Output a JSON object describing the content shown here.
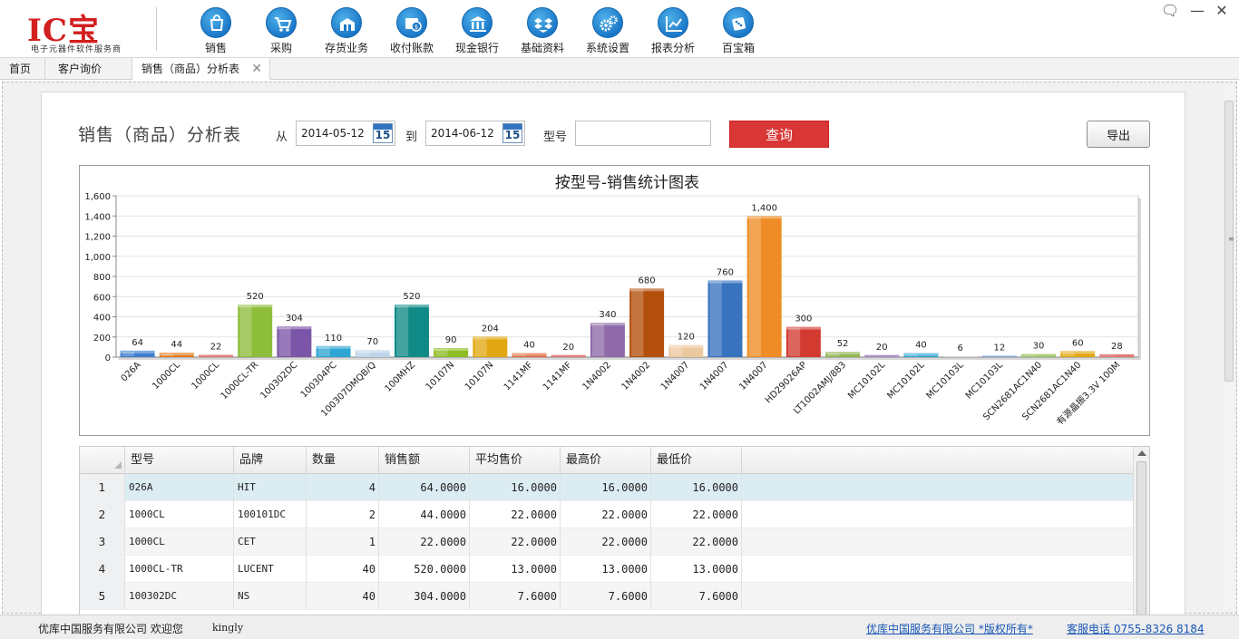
{
  "logo": {
    "text": "IC宝",
    "subtitle": "电子元器件软件服务商"
  },
  "nav": [
    {
      "label": "销售",
      "icon": "shopping-bag-icon"
    },
    {
      "label": "采购",
      "icon": "cart-icon"
    },
    {
      "label": "存货业务",
      "icon": "warehouse-icon"
    },
    {
      "label": "收付账款",
      "icon": "money-icon"
    },
    {
      "label": "现金银行",
      "icon": "bank-icon"
    },
    {
      "label": "基础资料",
      "icon": "dropbox-icon"
    },
    {
      "label": "系统设置",
      "icon": "gears-icon"
    },
    {
      "label": "报表分析",
      "icon": "line-chart-icon"
    },
    {
      "label": "百宝箱",
      "icon": "dice-icon"
    }
  ],
  "window": {
    "chat_glyph": "🗨",
    "minimize_glyph": "—",
    "close_glyph": "✕"
  },
  "tabs": [
    {
      "label": "首页"
    },
    {
      "label": "客户询价"
    },
    {
      "label": "销售（商品）分析表",
      "close": "✕"
    }
  ],
  "query": {
    "title": "销售（商品）分析表",
    "from_label": "从",
    "from_date": "2014-05-12",
    "to_label": "到",
    "to_date": "2014-06-12",
    "calendar_num": "15",
    "model_label": "型号",
    "model_value": "",
    "query_button": "查询",
    "export_button": "导出"
  },
  "colors": {
    "accent_red": "#d93636",
    "bars": [
      "#3d7fce",
      "#e07b1d",
      "#d43a34",
      "#8dbd3b",
      "#7b55a8",
      "#2ea6d3",
      "#bcd4ea",
      "#0f8a86",
      "#8dbd22",
      "#e2a713",
      "#e0683a",
      "#d23a34",
      "#8e6aa8",
      "#b34f0c",
      "#ecc89e",
      "#3873c0",
      "#ef8c25",
      "#d33a30",
      "#8fb44f",
      "#7b55a8",
      "#2ea6d3",
      "#c9c9c9",
      "#3873c0",
      "#7fb43a",
      "#e2a713",
      "#d23a34"
    ]
  },
  "chart_data": {
    "type": "bar",
    "title": "按型号-销售统计图表",
    "categories": [
      "026A",
      "1000CL",
      "1000CL",
      "1000CL-TR",
      "100302DC",
      "100304PC",
      "100307DMQB/Q",
      "100MHZ",
      "10107N",
      "10107N",
      "1141MF",
      "1141MF",
      "1N4002",
      "1N4002",
      "1N4007",
      "1N4007",
      "1N4007",
      "HD29026AP",
      "LT1002AMJ/883",
      "MC10102L",
      "MC10102L",
      "MC10103L",
      "MC10103L",
      "SCN2681AC1N40",
      "SCN2681AC1N40",
      "有源晶振3.3V  100M"
    ],
    "values": [
      64,
      44,
      22,
      520,
      304,
      110,
      70,
      520,
      90,
      204,
      40,
      20,
      340,
      680,
      120,
      760,
      1400,
      300,
      52,
      20,
      40,
      6,
      12,
      30,
      60,
      28
    ],
    "ylim": [
      0,
      1600
    ],
    "yticks": [
      "0",
      "200",
      "400",
      "600",
      "800",
      "1,000",
      "1,200",
      "1,400",
      "1,600"
    ],
    "value_labels": [
      "64",
      "44",
      "22",
      "520",
      "304",
      "110",
      "70",
      "520",
      "90",
      "204",
      "40",
      "20",
      "340",
      "680",
      "120",
      "760",
      "1,400",
      "300",
      "52",
      "20",
      "40",
      "6",
      "12",
      "30",
      "60",
      "28"
    ],
    "grid": true,
    "legend": "none"
  },
  "table": {
    "headers": [
      "型号",
      "品牌",
      "数量",
      "销售额",
      "平均售价",
      "最高价",
      "最低价"
    ],
    "rows": [
      {
        "idx": "1",
        "model": "026A",
        "brand": "HIT",
        "qty": "4",
        "amount": "64.0000",
        "avg": "16.0000",
        "max": "16.0000",
        "min": "16.0000"
      },
      {
        "idx": "2",
        "model": "1000CL",
        "brand": "100101DC",
        "qty": "2",
        "amount": "44.0000",
        "avg": "22.0000",
        "max": "22.0000",
        "min": "22.0000"
      },
      {
        "idx": "3",
        "model": "1000CL",
        "brand": "CET",
        "qty": "1",
        "amount": "22.0000",
        "avg": "22.0000",
        "max": "22.0000",
        "min": "22.0000"
      },
      {
        "idx": "4",
        "model": "1000CL-TR",
        "brand": "LUCENT",
        "qty": "40",
        "amount": "520.0000",
        "avg": "13.0000",
        "max": "13.0000",
        "min": "13.0000"
      },
      {
        "idx": "5",
        "model": "100302DC",
        "brand": "NS",
        "qty": "40",
        "amount": "304.0000",
        "avg": "7.6000",
        "max": "7.6000",
        "min": "7.6000"
      }
    ]
  },
  "status": {
    "company": "优库中国服务有限公司  欢迎您",
    "user": "kingly",
    "copyright": "优库中国服务有限公司 *版权所有*",
    "phone": "客服电话 0755-8326 8184"
  }
}
